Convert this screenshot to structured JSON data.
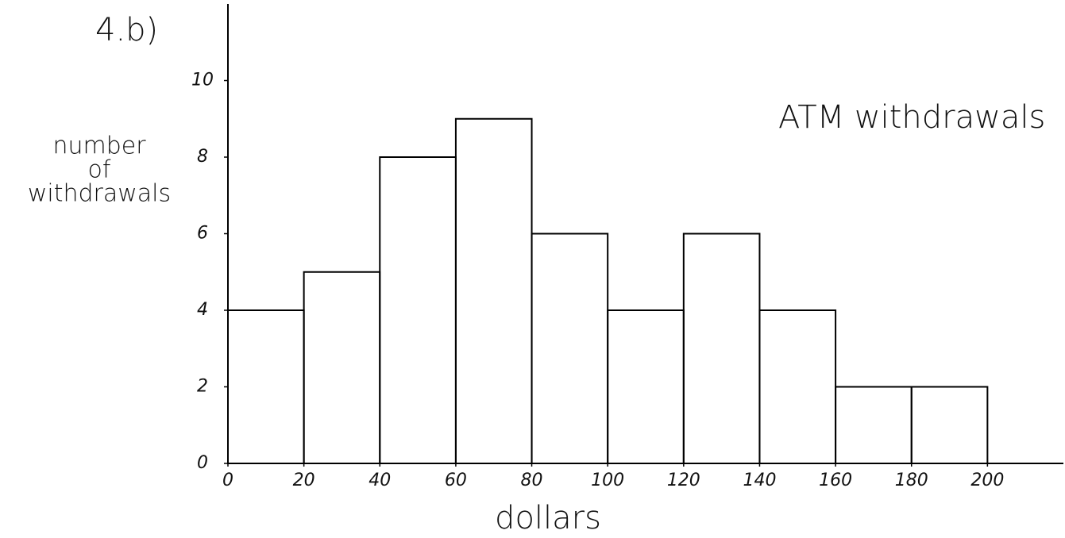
{
  "chart_data": {
    "type": "histogram",
    "label": "4.b)",
    "title": "ATM withdrawals",
    "x_label": "dollars",
    "y_label": [
      "number",
      "of",
      "withdrawals"
    ],
    "bins": [
      0,
      20,
      40,
      60,
      80,
      100,
      120,
      140,
      160,
      180,
      200
    ],
    "values": [
      4,
      5,
      8,
      9,
      6,
      4,
      6,
      4,
      2,
      2
    ],
    "color": "#000000",
    "xlim": [
      0,
      220
    ],
    "xticks": [
      0,
      20,
      40,
      60,
      80,
      100,
      120,
      140,
      160,
      180,
      200
    ],
    "ylim": [
      0,
      12
    ],
    "yticks": [
      0,
      2,
      4,
      6,
      8,
      10
    ],
    "grid": false
  }
}
